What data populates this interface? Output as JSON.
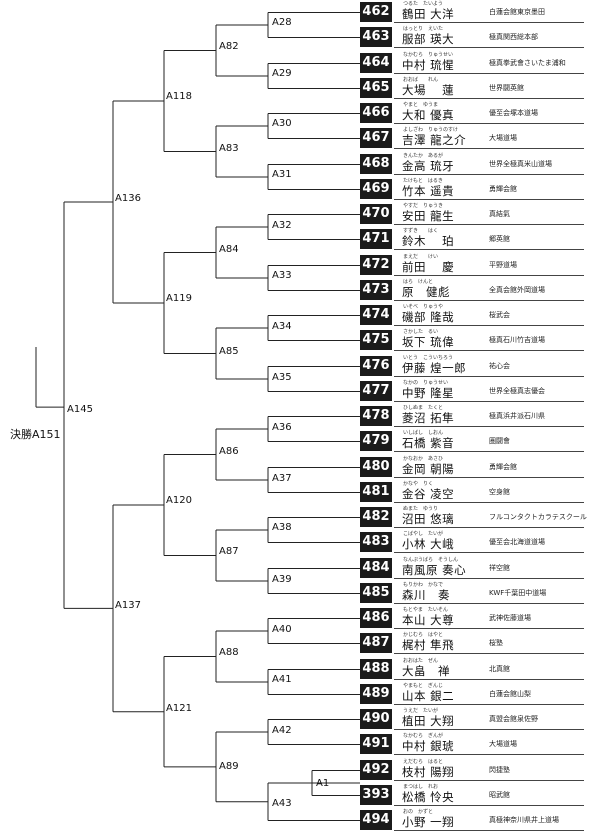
{
  "final_label": "決勝A151",
  "labels": {
    "A145": "A145",
    "A136": "A136",
    "A137": "A137",
    "A118": "A118",
    "A119": "A119",
    "A120": "A120",
    "A121": "A121",
    "A82": "A82",
    "A83": "A83",
    "A84": "A84",
    "A85": "A85",
    "A86": "A86",
    "A87": "A87",
    "A88": "A88",
    "A89": "A89",
    "A28": "A28",
    "A29": "A29",
    "A30": "A30",
    "A31": "A31",
    "A32": "A32",
    "A33": "A33",
    "A34": "A34",
    "A35": "A35",
    "A36": "A36",
    "A37": "A37",
    "A38": "A38",
    "A39": "A39",
    "A40": "A40",
    "A41": "A41",
    "A42": "A42",
    "A43": "A43",
    "A1": "A1"
  },
  "competitors": [
    {
      "num": "462",
      "ruby": "つるた　たいよう",
      "name": "鶴田 大洋",
      "dojo": "白蓮会館東京墨田"
    },
    {
      "num": "463",
      "ruby": "はっとり　えいた",
      "name": "服部 瑛大",
      "dojo": "極真関西総本部"
    },
    {
      "num": "464",
      "ruby": "なかむら　りゅうせい",
      "name": "中村 琉惺",
      "dojo": "極真拳武會さいたま浦和"
    },
    {
      "num": "465",
      "ruby": "おおば　　れん",
      "name": "大場　 蓮",
      "dojo": "世界闘英館"
    },
    {
      "num": "466",
      "ruby": "やまと　ゆうま",
      "name": "大和 優真",
      "dojo": "優至会塚本道場"
    },
    {
      "num": "467",
      "ruby": "よしざわ　りゅうのすけ",
      "name": "吉澤 龍之介",
      "dojo": "大場道場"
    },
    {
      "num": "468",
      "ruby": "きんたか　あるが",
      "name": "金高 琉牙",
      "dojo": "世界全極真米山道場"
    },
    {
      "num": "469",
      "ruby": "たけもと　はるき",
      "name": "竹本 遥貴",
      "dojo": "勇輝会館"
    },
    {
      "num": "470",
      "ruby": "やすだ　りゅうき",
      "name": "安田 龍生",
      "dojo": "真結氣"
    },
    {
      "num": "471",
      "ruby": "すずき　　はく",
      "name": "鈴木　 珀",
      "dojo": "郷英館"
    },
    {
      "num": "472",
      "ruby": "まえだ　　けい",
      "name": "前田　 慶",
      "dojo": "平野道場"
    },
    {
      "num": "473",
      "ruby": "はら　けんと",
      "name": "原　健彪",
      "dojo": "全真会館外岡道場"
    },
    {
      "num": "474",
      "ruby": "いそべ　りゅうや",
      "name": "磯部 隆哉",
      "dojo": "桜武会"
    },
    {
      "num": "475",
      "ruby": "さかした　るい",
      "name": "坂下 琉偉",
      "dojo": "極真石川竹吉道場"
    },
    {
      "num": "476",
      "ruby": "いとう　こういちろう",
      "name": "伊藤 煌一郎",
      "dojo": "祐心会"
    },
    {
      "num": "477",
      "ruby": "なかの　りゅうせい",
      "name": "中野 隆星",
      "dojo": "世界全極真志優会"
    },
    {
      "num": "478",
      "ruby": "ひしぬま　たくと",
      "name": "菱沼 拓隼",
      "dojo": "極真浜井派石川県"
    },
    {
      "num": "479",
      "ruby": "いしばし　しおん",
      "name": "石橋 紫音",
      "dojo": "圏闘會"
    },
    {
      "num": "480",
      "ruby": "かなおか　あさひ",
      "name": "金岡 朝陽",
      "dojo": "勇輝会館"
    },
    {
      "num": "481",
      "ruby": "かなや　りく",
      "name": "金谷 凌空",
      "dojo": "空身館"
    },
    {
      "num": "482",
      "ruby": "ぬまた　ゆうり",
      "name": "沼田 悠璃",
      "dojo": "フルコンタクトカラテスクール"
    },
    {
      "num": "483",
      "ruby": "こばやし　たいが",
      "name": "小林 大峨",
      "dojo": "優至会北海道道場"
    },
    {
      "num": "484",
      "ruby": "なんぷうばら　そうしん",
      "name": "南風原 奏心",
      "dojo": "祥空館"
    },
    {
      "num": "485",
      "ruby": "もりかわ　かなで",
      "name": "森川　奏",
      "dojo": "KWF千葉田中道場"
    },
    {
      "num": "486",
      "ruby": "もとやま　たいそん",
      "name": "本山 大尊",
      "dojo": "武神佐藤道場"
    },
    {
      "num": "487",
      "ruby": "かじむら　はやと",
      "name": "梶村 隼飛",
      "dojo": "桜塾"
    },
    {
      "num": "488",
      "ruby": "おおはた　ぜん",
      "name": "大畠　禅",
      "dojo": "北真館"
    },
    {
      "num": "489",
      "ruby": "やまもと　ぎんじ",
      "name": "山本 銀二",
      "dojo": "白蓮会館山梨"
    },
    {
      "num": "490",
      "ruby": "うえだ　たいが",
      "name": "植田 大翔",
      "dojo": "真盟会館泉佐野"
    },
    {
      "num": "491",
      "ruby": "なかむら　ぎんが",
      "name": "中村 銀琥",
      "dojo": "大場道場"
    },
    {
      "num": "492",
      "ruby": "えだむら　はると",
      "name": "枝村 陽翔",
      "dojo": "閃捷塾"
    },
    {
      "num": "393",
      "ruby": "まつはし　れお",
      "name": "松橋 怜央",
      "dojo": "昭武館"
    },
    {
      "num": "494",
      "ruby": "おの　かずと",
      "name": "小野 一翔",
      "dojo": "真極神奈川県井上道場"
    }
  ]
}
